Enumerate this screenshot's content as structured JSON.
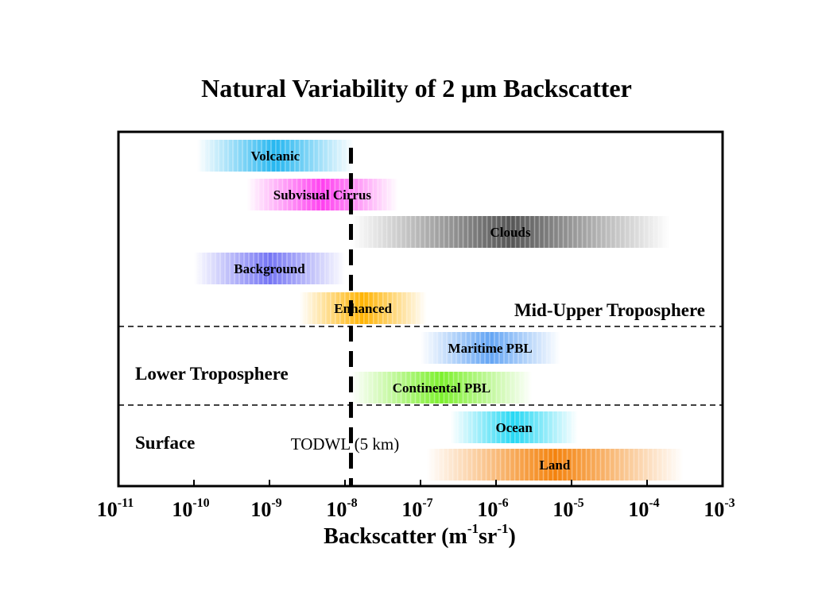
{
  "chart_data": {
    "type": "range",
    "title": "Natural Variability of 2 μm Backscatter",
    "xlabel": {
      "base": "Backscatter (m",
      "sup1": "-1",
      "mid": "sr",
      "sup2": "-1",
      "end": ")"
    },
    "x_scale": "log",
    "xlim": [
      1e-11,
      0.001
    ],
    "ticks": [
      {
        "value": 1e-11,
        "base": "10",
        "exp": "-11"
      },
      {
        "value": 1e-10,
        "base": "10",
        "exp": "-10"
      },
      {
        "value": 1e-09,
        "base": "10",
        "exp": "-9"
      },
      {
        "value": 1e-08,
        "base": "10",
        "exp": "-8"
      },
      {
        "value": 1e-07,
        "base": "10",
        "exp": "-7"
      },
      {
        "value": 1e-06,
        "base": "10",
        "exp": "-6"
      },
      {
        "value": 1e-05,
        "base": "10",
        "exp": "-5"
      },
      {
        "value": 0.0001,
        "base": "10",
        "exp": "-4"
      },
      {
        "value": 0.001,
        "base": "10",
        "exp": "-3"
      }
    ],
    "regions": [
      {
        "id": "mid-upper",
        "label": "Mid-Upper Troposphere",
        "anchor": "right"
      },
      {
        "id": "lower",
        "label": "Lower Troposphere",
        "anchor": "left"
      },
      {
        "id": "surface",
        "label": "Surface",
        "anchor": "left"
      }
    ],
    "bands": [
      {
        "label": "Volcanic",
        "min": 1.1e-10,
        "max": 1.3e-08,
        "color": "#24b6f0",
        "region": "mid-upper"
      },
      {
        "label": "Subvisual Cirrus",
        "min": 5e-10,
        "max": 5e-08,
        "color": "#ff3ff0",
        "region": "mid-upper"
      },
      {
        "label": "Clouds",
        "min": 1.2e-08,
        "max": 0.0002,
        "color": "#555555",
        "region": "mid-upper"
      },
      {
        "label": "Background",
        "min": 1e-10,
        "max": 1e-08,
        "color": "#7474f4",
        "region": "mid-upper"
      },
      {
        "label": "Enhanced",
        "min": 2.5e-09,
        "max": 1.2e-07,
        "color": "#ffb300",
        "region": "mid-upper"
      },
      {
        "label": "Maritime PBL",
        "min": 1e-07,
        "max": 7e-06,
        "color": "#62a4f4",
        "region": "lower"
      },
      {
        "label": "Continental PBL",
        "min": 1.2e-08,
        "max": 3e-06,
        "color": "#7cf02c",
        "region": "lower"
      },
      {
        "label": "Ocean",
        "min": 2.5e-07,
        "max": 1.2e-05,
        "color": "#24d8f4",
        "region": "surface"
      },
      {
        "label": "Land",
        "min": 1.2e-07,
        "max": 0.0003,
        "color": "#f4820c",
        "region": "surface"
      }
    ],
    "threshold": {
      "value": 1.2e-08,
      "label": "TODWL (5 km)"
    }
  }
}
